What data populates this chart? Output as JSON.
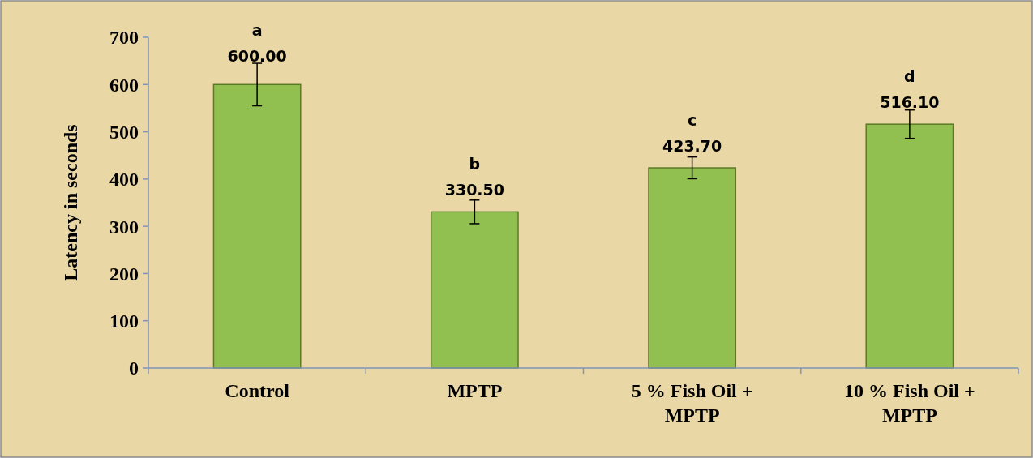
{
  "chart_data": {
    "type": "bar",
    "ylabel": "Latency in seconds",
    "categories": [
      "Control",
      "MPTP",
      "5 % Fish Oil + MPTP",
      "10 % Fish Oil + MPTP"
    ],
    "values": [
      600.0,
      330.5,
      423.7,
      516.1
    ],
    "value_labels": [
      "600.00",
      "330.50",
      "423.70",
      "516.10"
    ],
    "errors": [
      45,
      25,
      23,
      30
    ],
    "color": "#92c050",
    "ylim": [
      0,
      700
    ],
    "yticks": [
      0,
      100,
      200,
      300,
      400,
      500,
      600,
      700
    ],
    "annotations": [
      "a",
      "b",
      "c",
      "d"
    ]
  }
}
